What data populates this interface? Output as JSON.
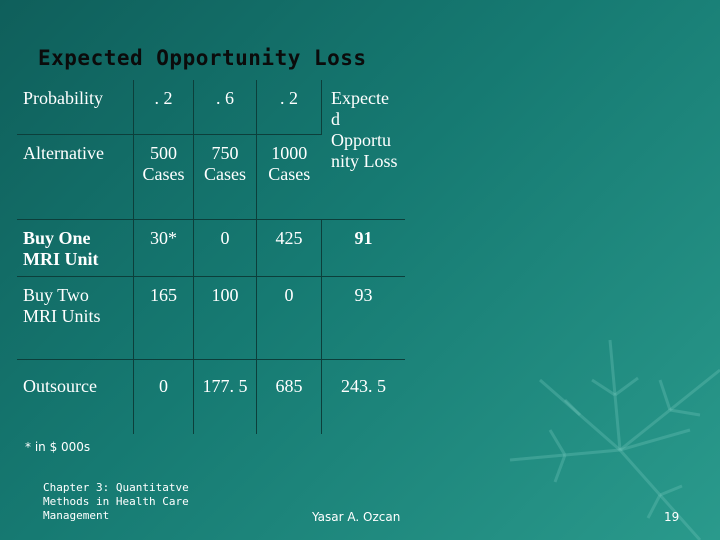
{
  "slide": {
    "title": "Expected Opportunity Loss",
    "footnote": "* in $ 000s",
    "chapter_text": "Chapter 3: Quantitatve Methods in Health Care Management",
    "author": "Yasar A. Ozcan",
    "page_number": "19"
  },
  "table": {
    "probability_row": {
      "label": "Probability",
      "values": [
        ". 2",
        ". 6",
        ". 2"
      ],
      "eol_header": "Expecte d Opportu nity Loss"
    },
    "alternative_row": {
      "label": "Alternative",
      "values": [
        "500 Cases",
        "750 Cases",
        "1000 Cases"
      ]
    },
    "rows": [
      {
        "label": "Buy One MRI Unit",
        "values": [
          "30*",
          "0",
          "425"
        ],
        "eol": "91"
      },
      {
        "label": "Buy Two MRI Units",
        "values": [
          "165",
          "100",
          "0"
        ],
        "eol": "93"
      },
      {
        "label": "Outsource",
        "values": [
          "0",
          "177. 5",
          "685"
        ],
        "eol": "243. 5"
      }
    ]
  }
}
